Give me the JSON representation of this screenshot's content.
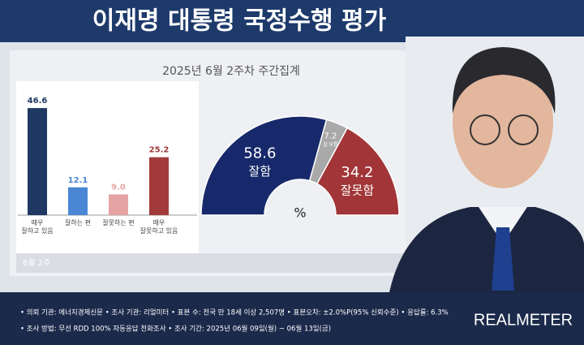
{
  "header": {
    "title": "이재명 대통령 국정수행 평가",
    "subtitle": "2025년 6월 2주차 주간집계"
  },
  "chart_data": [
    {
      "type": "bar",
      "period": "6월 2주",
      "categories": [
        "매우\n잘하고 있음",
        "잘하는 편",
        "잘못하는 편",
        "매우\n잘못하고 있음"
      ],
      "values": [
        46.6,
        12.1,
        9.0,
        25.2
      ],
      "value_labels": [
        "46.6",
        "12.1",
        "9.0",
        "25.2"
      ],
      "colors": [
        "#1f3864",
        "#4a86d4",
        "#e6a3a3",
        "#a33a3a"
      ]
    },
    {
      "type": "half-donut",
      "center_label": "%",
      "categories": [
        "잘함",
        "잘 모름",
        "잘못함"
      ],
      "values": [
        58.6,
        7.2,
        34.2
      ],
      "value_labels": [
        "58.6",
        "7.2",
        "34.2"
      ],
      "colors": [
        "#17296a",
        "#a9a9a9",
        "#a23537"
      ]
    }
  ],
  "footer": {
    "lines": [
      "• 의뢰 기관: 에너지경제신문 • 조사 기관: 리얼미터 • 표본 수: 전국 만 18세 이상 2,507명 • 표본오차: ±2.0%P(95% 신뢰수준) • 응답률: 6.3%",
      "• 조사 방법: 무선 RDD 100% 자동응답 전화조사 • 조사 기간: 2025년 06월 09일(월) ~ 06월 13일(금)"
    ],
    "brand": "REALMETER"
  }
}
